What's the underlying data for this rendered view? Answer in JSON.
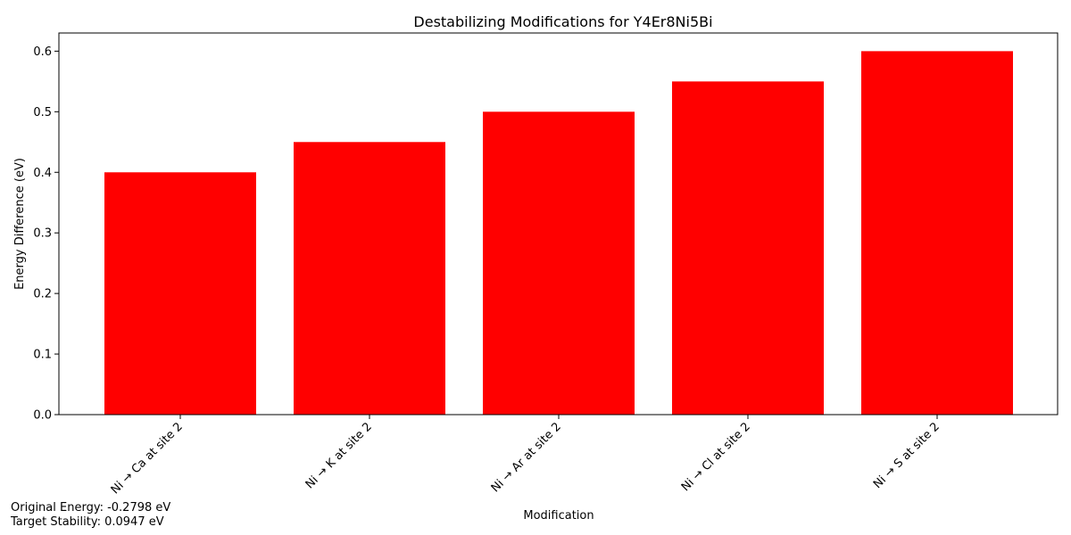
{
  "chart_data": {
    "type": "bar",
    "title": "Destabilizing Modifications for Y4Er8Ni5Bi",
    "xlabel": "Modification",
    "ylabel": "Energy Difference (eV)",
    "categories": [
      "Ni → Ca at site 2",
      "Ni → K at site 2",
      "Ni → Ar at site 2",
      "Ni → Cl at site 2",
      "Ni → S at site 2"
    ],
    "values": [
      0.4,
      0.45,
      0.5,
      0.55,
      0.6
    ],
    "ylim": [
      0,
      0.63
    ],
    "yticks": [
      "0.0",
      "0.1",
      "0.2",
      "0.3",
      "0.4",
      "0.5",
      "0.6"
    ],
    "bar_color": "#ff0000",
    "grid": false,
    "legend": "none"
  },
  "annotations": {
    "original_energy": "Original Energy: -0.2798 eV",
    "target_stability": "Target Stability: 0.0947 eV"
  }
}
